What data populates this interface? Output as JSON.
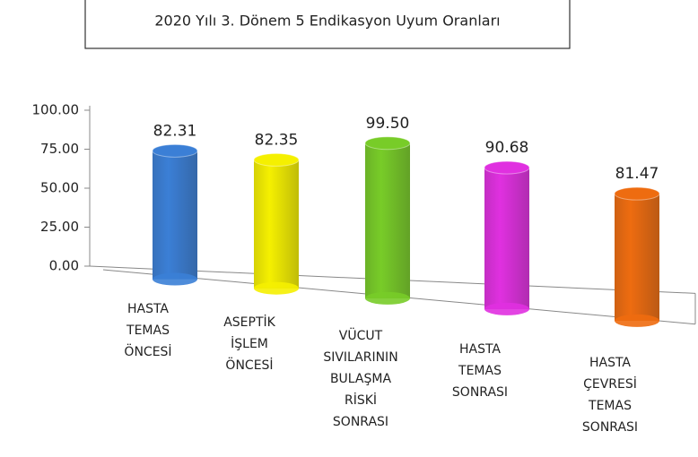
{
  "chart_data": {
    "type": "bar3d",
    "title": "2020 Yılı 3. Dönem 5 Endikasyon Uyum Oranları",
    "categories": [
      "HASTA TEMAS ÖNCESİ",
      "ASEPTİK İŞLEM ÖNCESİ",
      "VÜCUT SIVILARININ BULAŞMA RİSKİ SONRASI",
      "HASTA TEMAS SONRASI",
      "HASTA ÇEVRESİ TEMAS SONRASI"
    ],
    "values": [
      82.31,
      82.35,
      99.5,
      90.68,
      81.47
    ],
    "value_labels": [
      "82.31",
      "82.35",
      "99.50",
      "90.68",
      "81.47"
    ],
    "colors": [
      "#3b7fd6",
      "#f5f000",
      "#78cc28",
      "#e030e0",
      "#ee6c10"
    ],
    "ylim": [
      0,
      100
    ],
    "yticks": [
      {
        "value": 0,
        "label": "0.00"
      },
      {
        "value": 25,
        "label": "25.00"
      },
      {
        "value": 50,
        "label": "50.00"
      },
      {
        "value": 75,
        "label": "75.00"
      },
      {
        "value": 100,
        "label": "100.00"
      }
    ],
    "grid": false
  }
}
